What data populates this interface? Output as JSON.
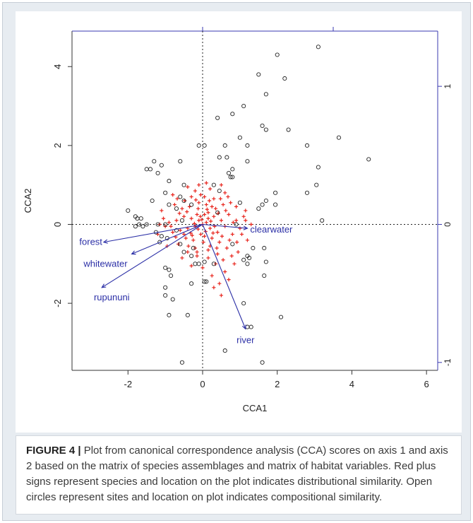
{
  "figure": {
    "caption_label": "FIGURE 4 |",
    "caption_text": " Plot from canonical correspondence analysis (CCA) scores on axis 1 and axis 2 based on the matrix of species assemblages and matrix of habitat variables. Red plus signs represent species and location on the plot indicates distributional similarity. Open circles represent sites and location on plot indicates compositional similarity."
  },
  "colors": {
    "species": "#e8241c",
    "sites": "#222222",
    "arrows": "#2b2fa6",
    "secondary_axis": "#3a3ab0",
    "background": "#e7ecf1"
  },
  "chart_data": {
    "type": "scatter",
    "title": "",
    "xlabel": "CCA1",
    "ylabel": "CCA2",
    "xlim": [
      -3.5,
      6.3
    ],
    "ylim": [
      -3.7,
      4.9
    ],
    "xticks": [
      -2,
      0,
      2,
      4,
      6
    ],
    "yticks": [
      -2,
      0,
      2,
      4
    ],
    "secondary_axis": {
      "ticks": [
        -1,
        0,
        1
      ],
      "scale": 3.5
    },
    "reference_lines": {
      "x": 0,
      "y": 0,
      "style": "dotted"
    },
    "legend": "none",
    "biplot_arrows": [
      {
        "label": "forest",
        "x": -2.65,
        "y": -0.45
      },
      {
        "label": "whitewater",
        "x": -1.9,
        "y": -0.75
      },
      {
        "label": "rupununi",
        "x": -2.7,
        "y": -1.6
      },
      {
        "label": "clearwater",
        "x": 1.2,
        "y": -0.1
      },
      {
        "label": "river",
        "x": 1.15,
        "y": -2.65
      }
    ],
    "sites": [
      [
        3.1,
        4.5
      ],
      [
        2.0,
        4.3
      ],
      [
        2.2,
        3.7
      ],
      [
        1.5,
        3.8
      ],
      [
        1.7,
        3.3
      ],
      [
        1.1,
        3.0
      ],
      [
        0.4,
        2.7
      ],
      [
        0.8,
        2.8
      ],
      [
        1.6,
        2.5
      ],
      [
        1.7,
        2.4
      ],
      [
        2.3,
        2.4
      ],
      [
        3.65,
        2.2
      ],
      [
        1.0,
        2.2
      ],
      [
        1.2,
        2.0
      ],
      [
        0.6,
        2.0
      ],
      [
        -0.1,
        2.0
      ],
      [
        0.05,
        2.0
      ],
      [
        2.8,
        2.0
      ],
      [
        4.45,
        1.65
      ],
      [
        3.1,
        1.45
      ],
      [
        0.45,
        1.7
      ],
      [
        0.65,
        1.7
      ],
      [
        1.2,
        1.6
      ],
      [
        0.8,
        1.4
      ],
      [
        -0.6,
        1.6
      ],
      [
        -1.3,
        1.6
      ],
      [
        -1.1,
        1.5
      ],
      [
        -1.4,
        1.4
      ],
      [
        -1.5,
        1.4
      ],
      [
        -1.2,
        1.3
      ],
      [
        0.7,
        1.3
      ],
      [
        0.75,
        1.2
      ],
      [
        0.8,
        1.2
      ],
      [
        -0.9,
        1.1
      ],
      [
        3.05,
        1.0
      ],
      [
        -0.5,
        1.0
      ],
      [
        -1.0,
        0.8
      ],
      [
        1.95,
        0.8
      ],
      [
        -0.6,
        0.7
      ],
      [
        -0.5,
        0.6
      ],
      [
        2.8,
        0.8
      ],
      [
        1.7,
        0.6
      ],
      [
        -1.35,
        0.6
      ],
      [
        -0.9,
        0.5
      ],
      [
        -0.3,
        0.5
      ],
      [
        1.6,
        0.5
      ],
      [
        1.95,
        0.5
      ],
      [
        -0.7,
        0.4
      ],
      [
        1.5,
        0.4
      ],
      [
        -2.0,
        0.35
      ],
      [
        -1.8,
        0.2
      ],
      [
        -1.75,
        0.15
      ],
      [
        -1.65,
        0.15
      ],
      [
        3.2,
        0.1
      ],
      [
        -1.7,
        0.0
      ],
      [
        -1.5,
        0.0
      ],
      [
        -1.2,
        0.0
      ],
      [
        -1.0,
        0.0
      ],
      [
        -1.8,
        -0.05
      ],
      [
        -1.6,
        -0.05
      ],
      [
        -1.25,
        -0.2
      ],
      [
        -1.1,
        -0.3
      ],
      [
        -0.95,
        -0.35
      ],
      [
        -1.15,
        -0.45
      ],
      [
        -0.6,
        -0.5
      ],
      [
        -0.25,
        -0.6
      ],
      [
        -0.5,
        -0.7
      ],
      [
        -0.3,
        -0.8
      ],
      [
        1.2,
        -0.8
      ],
      [
        1.35,
        -0.6
      ],
      [
        1.65,
        -0.6
      ],
      [
        -0.2,
        -1.0
      ],
      [
        -0.1,
        -1.0
      ],
      [
        1.7,
        -0.95
      ],
      [
        1.1,
        -0.9
      ],
      [
        1.25,
        -0.85
      ],
      [
        1.2,
        -1.0
      ],
      [
        -1.0,
        -1.1
      ],
      [
        -0.9,
        -1.15
      ],
      [
        -0.85,
        -1.3
      ],
      [
        1.65,
        -1.3
      ],
      [
        0.05,
        -1.45
      ],
      [
        0.1,
        -1.45
      ],
      [
        -0.3,
        -1.5
      ],
      [
        -1.0,
        -1.8
      ],
      [
        -0.8,
        -1.9
      ],
      [
        1.1,
        -2.0
      ],
      [
        2.1,
        -2.35
      ],
      [
        -0.9,
        -2.3
      ],
      [
        -0.4,
        -2.3
      ],
      [
        1.2,
        -2.6
      ],
      [
        1.3,
        -2.6
      ],
      [
        0.6,
        -3.2
      ],
      [
        -0.55,
        -3.5
      ],
      [
        1.6,
        -3.5
      ],
      [
        -1.0,
        -1.6
      ],
      [
        0.3,
        -1.0
      ],
      [
        0.05,
        -0.95
      ],
      [
        0.4,
        0.3
      ],
      [
        0.9,
        0.0
      ],
      [
        -0.7,
        -0.15
      ],
      [
        -0.55,
        0.1
      ],
      [
        0.8,
        -0.5
      ],
      [
        1.0,
        0.55
      ],
      [
        0.3,
        1.0
      ],
      [
        0.45,
        0.85
      ]
    ],
    "species": [
      [
        0.0,
        0.0
      ],
      [
        0.1,
        0.05
      ],
      [
        -0.1,
        0.1
      ],
      [
        0.2,
        -0.1
      ],
      [
        -0.2,
        -0.05
      ],
      [
        0.3,
        0.2
      ],
      [
        -0.3,
        0.15
      ],
      [
        0.15,
        0.3
      ],
      [
        -0.15,
        0.25
      ],
      [
        0.4,
        -0.2
      ],
      [
        -0.4,
        -0.1
      ],
      [
        0.05,
        -0.3
      ],
      [
        -0.05,
        -0.25
      ],
      [
        0.5,
        0.1
      ],
      [
        -0.5,
        0.2
      ],
      [
        0.25,
        -0.35
      ],
      [
        -0.25,
        -0.4
      ],
      [
        0.35,
        0.4
      ],
      [
        -0.35,
        0.45
      ],
      [
        0.6,
        -0.05
      ],
      [
        -0.6,
        -0.15
      ],
      [
        0.1,
        0.5
      ],
      [
        -0.1,
        0.55
      ],
      [
        0.45,
        -0.45
      ],
      [
        -0.45,
        -0.35
      ],
      [
        0.7,
        0.25
      ],
      [
        -0.7,
        0.1
      ],
      [
        0.2,
        -0.55
      ],
      [
        -0.2,
        -0.6
      ],
      [
        0.55,
        0.5
      ],
      [
        -0.55,
        0.4
      ],
      [
        0.8,
        -0.25
      ],
      [
        -0.8,
        -0.2
      ],
      [
        0.05,
        0.7
      ],
      [
        -0.05,
        0.75
      ],
      [
        0.65,
        -0.6
      ],
      [
        -0.65,
        -0.5
      ],
      [
        0.9,
        0.1
      ],
      [
        -0.9,
        0.05
      ],
      [
        0.3,
        0.65
      ],
      [
        -0.3,
        0.7
      ],
      [
        0.4,
        -0.75
      ],
      [
        -0.4,
        -0.7
      ],
      [
        1.0,
        -0.1
      ],
      [
        -1.0,
        -0.05
      ],
      [
        0.15,
        -0.85
      ],
      [
        -0.15,
        -0.8
      ],
      [
        0.75,
        0.55
      ],
      [
        -0.75,
        0.5
      ],
      [
        1.1,
        0.2
      ],
      [
        0.2,
        0.9
      ],
      [
        -0.2,
        0.85
      ],
      [
        0.55,
        -0.9
      ],
      [
        0.35,
        -1.0
      ],
      [
        0.6,
        -1.2
      ],
      [
        0.25,
        -1.3
      ],
      [
        0.45,
        -1.5
      ],
      [
        0.85,
        -1.0
      ],
      [
        0.95,
        -0.7
      ],
      [
        1.2,
        -0.4
      ],
      [
        1.3,
        0.0
      ],
      [
        1.15,
        0.35
      ],
      [
        0.9,
        0.45
      ],
      [
        0.6,
        0.8
      ],
      [
        0.5,
        1.0
      ],
      [
        0.1,
        1.05
      ],
      [
        -0.1,
        1.0
      ],
      [
        -0.4,
        0.95
      ],
      [
        -0.8,
        0.75
      ],
      [
        -1.1,
        0.35
      ],
      [
        -1.2,
        -0.25
      ],
      [
        -0.95,
        -0.55
      ],
      [
        -0.55,
        -0.85
      ],
      [
        -0.3,
        -1.05
      ],
      [
        0.0,
        -1.1
      ],
      [
        0.3,
        -1.6
      ],
      [
        0.5,
        -1.8
      ],
      [
        0.7,
        -1.4
      ],
      [
        0.15,
        0.15
      ],
      [
        -0.12,
        -0.12
      ],
      [
        0.22,
        0.08
      ],
      [
        -0.22,
        0.02
      ],
      [
        0.08,
        -0.18
      ],
      [
        -0.06,
        0.2
      ],
      [
        0.32,
        -0.05
      ],
      [
        -0.32,
        -0.22
      ],
      [
        0.42,
        0.28
      ],
      [
        -0.42,
        0.32
      ],
      [
        0.12,
        0.38
      ],
      [
        -0.12,
        0.4
      ],
      [
        0.62,
        0.35
      ],
      [
        -0.62,
        0.28
      ],
      [
        0.72,
        -0.4
      ],
      [
        -0.72,
        -0.32
      ],
      [
        0.02,
        -0.45
      ],
      [
        0.28,
        -0.22
      ],
      [
        -0.28,
        -0.28
      ],
      [
        0.52,
        -0.3
      ],
      [
        -0.5,
        -0.25
      ],
      [
        0.82,
        0.05
      ],
      [
        -0.85,
        -0.05
      ],
      [
        0.18,
        0.6
      ],
      [
        -0.18,
        0.62
      ],
      [
        0.38,
        -0.6
      ],
      [
        -0.38,
        -0.55
      ],
      [
        1.05,
        -0.25
      ],
      [
        -1.05,
        0.15
      ],
      [
        0.68,
        0.7
      ],
      [
        -0.68,
        0.65
      ],
      [
        0.92,
        -0.45
      ],
      [
        1.15,
        0.1
      ],
      [
        -1.15,
        0.0
      ],
      [
        0.48,
        0.65
      ],
      [
        -0.48,
        0.6
      ],
      [
        0.78,
        -0.8
      ],
      [
        0.15,
        -0.65
      ],
      [
        -0.15,
        -0.7
      ],
      [
        0.05,
        0.25
      ],
      [
        -0.02,
        0.12
      ],
      [
        0.25,
        0.45
      ]
    ]
  }
}
